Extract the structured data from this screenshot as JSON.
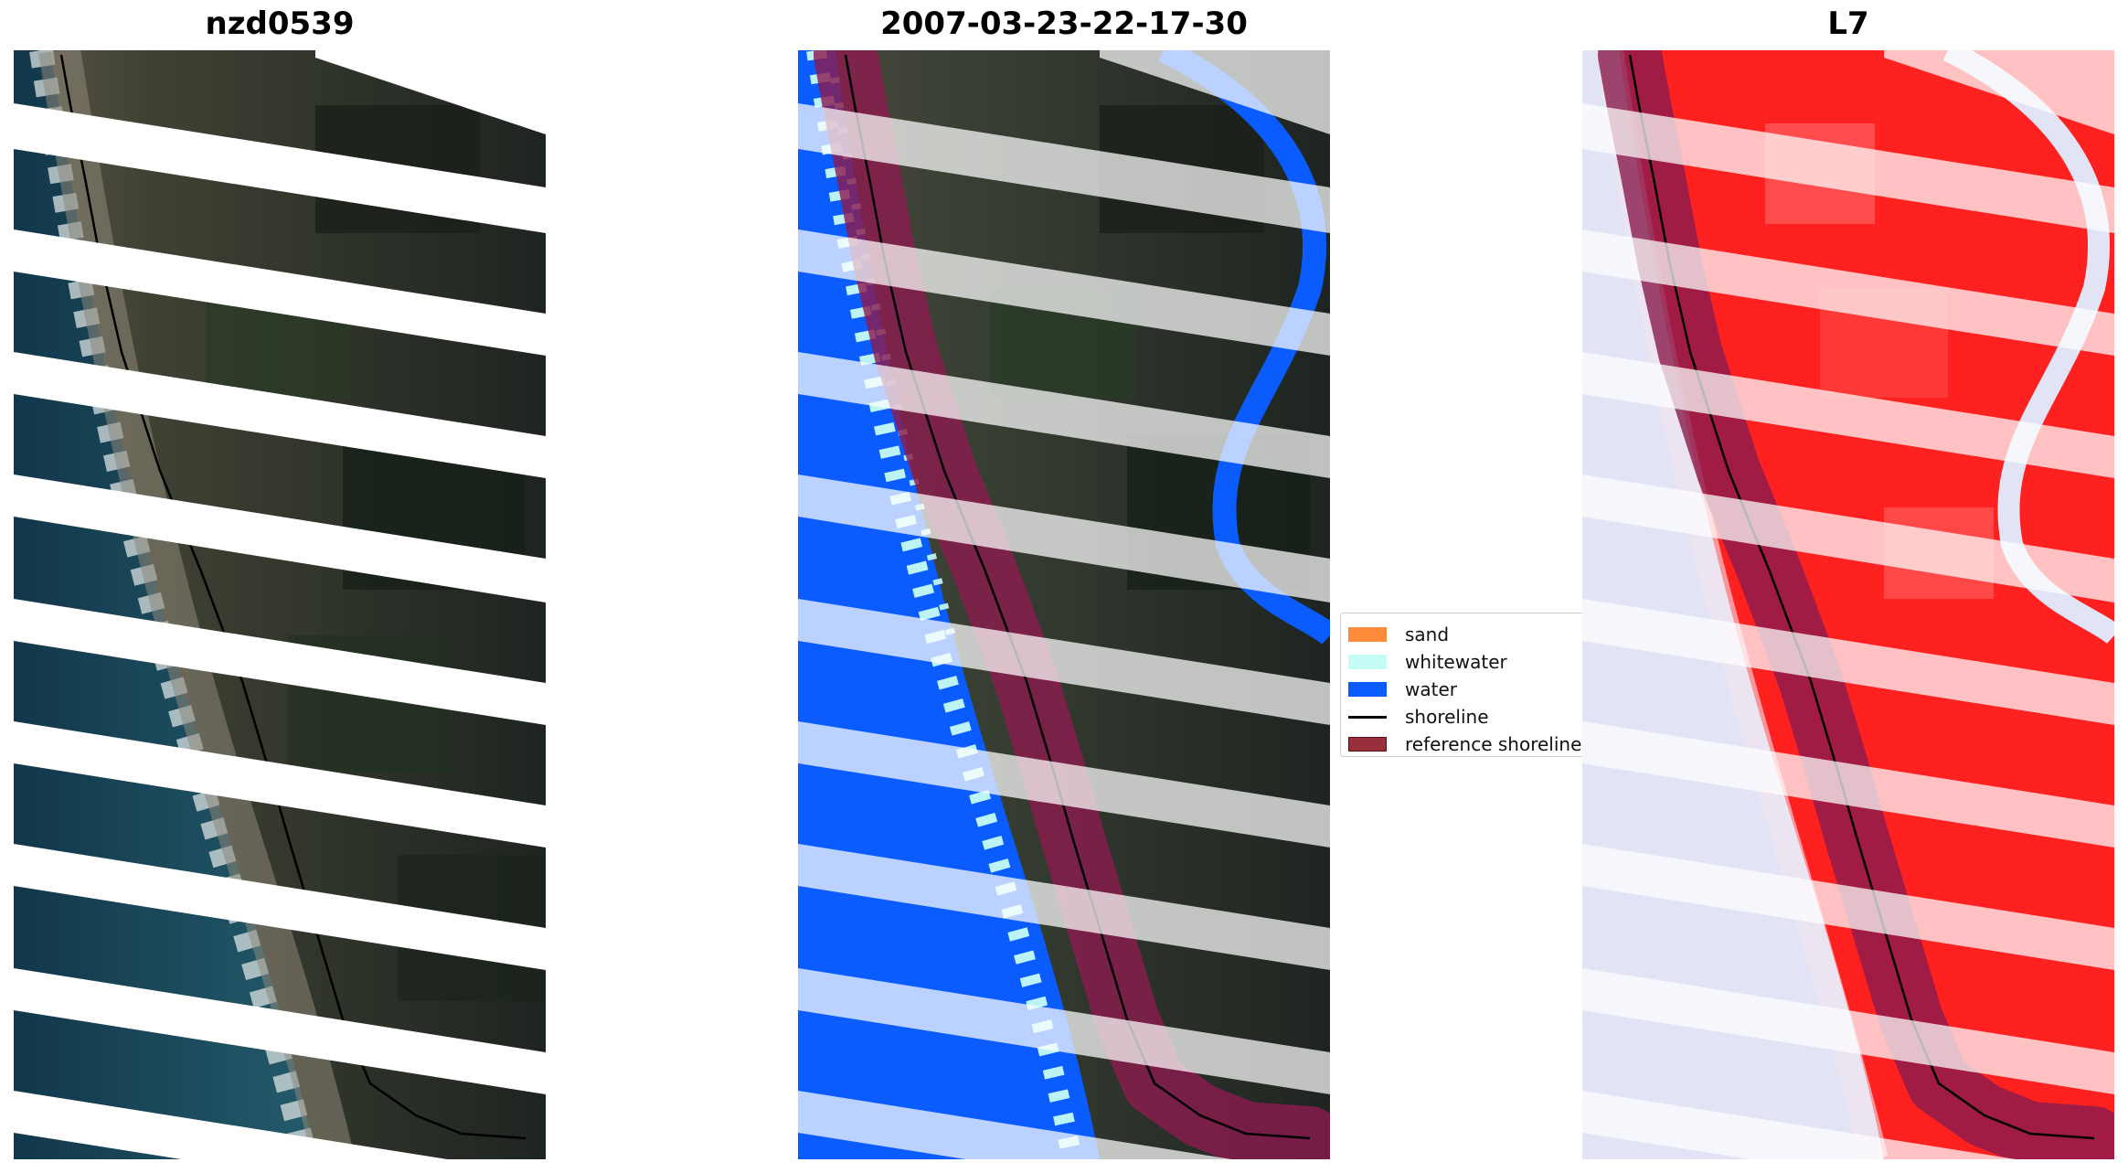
{
  "panels": {
    "rgb": {
      "title": "nzd0539"
    },
    "classified": {
      "title": "2007-03-23-22-17-30"
    },
    "index": {
      "title": "L7"
    }
  },
  "legend": {
    "items": [
      {
        "label": "sand",
        "color": "#ff8c3a"
      },
      {
        "label": "whitewater",
        "color": "#c6fcf6"
      },
      {
        "label": "water",
        "color": "#0a5cff"
      },
      {
        "label": "shoreline",
        "color": "#000000"
      },
      {
        "label": "reference shoreline buffer",
        "color": "#9a2f3c"
      }
    ]
  },
  "colors": {
    "ocean": "#1c4a5c",
    "land": "#2c3325",
    "buffer": "#8a1c4e",
    "index_positive": "#ff2020",
    "index_negative": "#e2e4f6"
  }
}
